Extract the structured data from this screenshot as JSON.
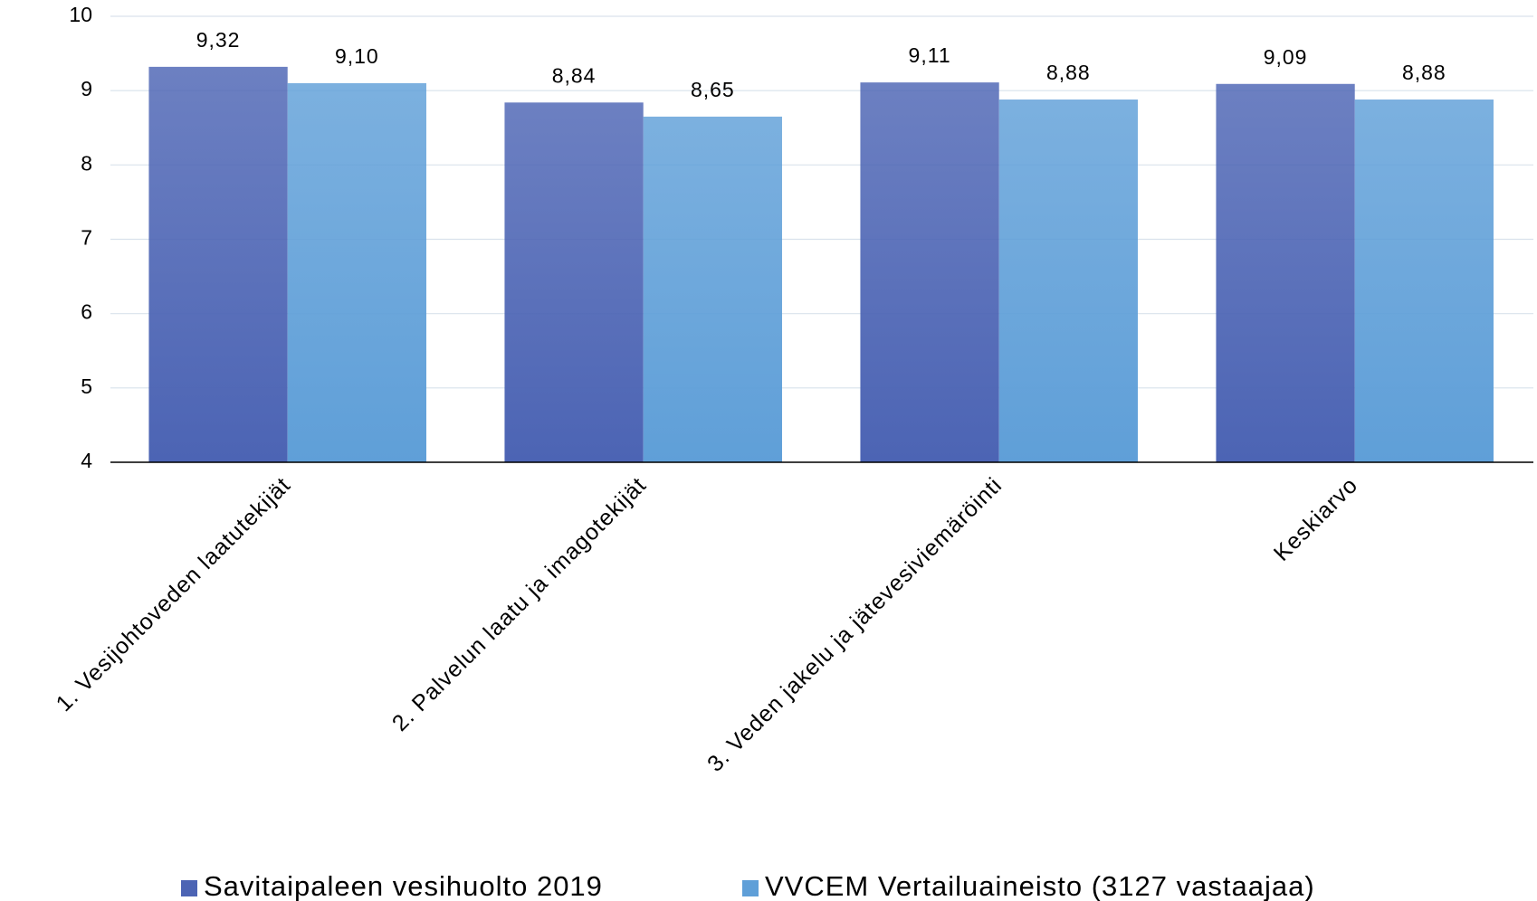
{
  "chart_data": {
    "type": "bar",
    "categories": [
      "1. Vesijohtoveden laatutekijät",
      "2. Palvelun laatu ja imagotekijät",
      "3. Veden jakelu ja jätevesiviemäröinti",
      "Keskiarvo"
    ],
    "series": [
      {
        "name": "Savitaipaleen vesihuolto 2019",
        "color": "#4c64b4",
        "values": [
          9.32,
          8.84,
          9.11,
          9.09
        ],
        "value_labels": [
          "9,32",
          "8,84",
          "9,11",
          "9,09"
        ]
      },
      {
        "name": "VVCEM Vertailuaineisto (3127 vastaajaa)",
        "color": "#5f9fd8",
        "values": [
          9.1,
          8.65,
          8.88,
          8.88
        ],
        "value_labels": [
          "9,10",
          "8,65",
          "8,88",
          "8,88"
        ]
      }
    ],
    "ylim": [
      4,
      10
    ],
    "yticks": [
      4,
      5,
      6,
      7,
      8,
      9,
      10
    ],
    "grid": true,
    "legend": "bottom"
  }
}
